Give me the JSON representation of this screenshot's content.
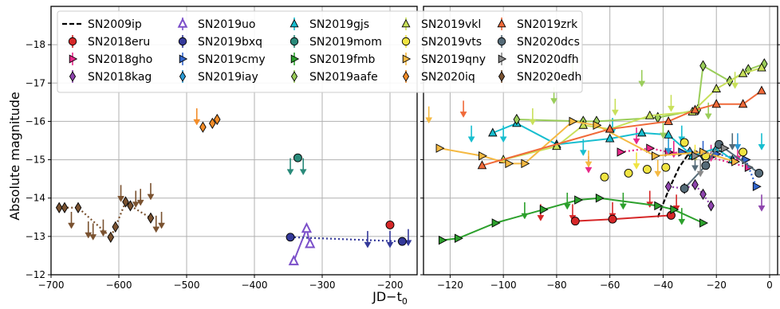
{
  "chart_data": {
    "type": "scatter",
    "ylabel": "Absolute magnitude",
    "xlabel": "JD−t",
    "xlabel_sub": "0",
    "y_inverted": true,
    "grid": true,
    "legend_placement": "top spanning both panels",
    "ylim": [
      -12,
      -19
    ],
    "yticks": [
      -12,
      -13,
      -14,
      -15,
      -16,
      -17,
      -18
    ],
    "ytick_labels": [
      "−12",
      "−13",
      "−14",
      "−15",
      "−16",
      "−17",
      "−18"
    ],
    "panels": [
      {
        "name": "left",
        "xlim": [
          -700,
          -160
        ],
        "xticks": [
          -700,
          -600,
          -500,
          -400,
          -300,
          -200
        ],
        "xtick_labels": [
          "−700",
          "−600",
          "−500",
          "−400",
          "−300",
          "−200"
        ]
      },
      {
        "name": "right",
        "xlim": [
          -130,
          3
        ],
        "xticks": [
          -120,
          -100,
          -80,
          -60,
          -40,
          -20,
          0
        ],
        "xtick_labels": [
          "−120",
          "−100",
          "−80",
          "−60",
          "−40",
          "−20",
          "0"
        ]
      }
    ],
    "series": [
      {
        "name": "SN2009ip",
        "color": "#000000",
        "marker": "dashed-line",
        "panel": "right",
        "points": [
          [
            -42,
            -13.5
          ],
          [
            -38,
            -14.2
          ],
          [
            -34,
            -14.8
          ],
          [
            -30,
            -15.2
          ],
          [
            -27,
            -15.2
          ]
        ],
        "upper_limits": []
      },
      {
        "name": "SN2018eru",
        "color": "#d62728",
        "marker": "circle",
        "line": "solid",
        "panels": {
          "left": {
            "points": [
              [
                -200,
                -13.3
              ]
            ],
            "upper_limits": []
          },
          "right": {
            "points": [
              [
                -73,
                -13.4
              ],
              [
                -59,
                -13.45
              ],
              [
                -37,
                -13.55
              ]
            ],
            "upper_limits": [
              [
                -86,
                -13.55
              ],
              [
                -74,
                -13.55
              ],
              [
                -59,
                -13.6
              ],
              [
                -45,
                -13.9
              ],
              [
                -35,
                -13.8
              ]
            ]
          }
        }
      },
      {
        "name": "SN2018gho",
        "color": "#e7298a",
        "marker": "triangle-right",
        "line": "dotted",
        "panels": {
          "right": {
            "points": [
              [
                -56,
                -15.2
              ],
              [
                -45,
                -15.3
              ],
              [
                -38,
                -15.2
              ],
              [
                -27,
                -15.15
              ],
              [
                -8,
                -14.8
              ]
            ],
            "upper_limits": [
              [
                -68,
                -14.8
              ],
              [
                -50,
                -15.55
              ],
              [
                -36,
                -15.2
              ],
              [
                -22,
                -15.1
              ],
              [
                -12,
                -15.1
              ]
            ]
          }
        }
      },
      {
        "name": "SN2018kag",
        "color": "#8e44ad",
        "marker": "diamond",
        "line": "dotted",
        "panels": {
          "right": {
            "points": [
              [
                -38,
                -14.3
              ],
              [
                -32,
                -14.25
              ],
              [
                -28,
                -14.35
              ],
              [
                -25,
                -14.1
              ],
              [
                -22,
                -13.8
              ]
            ],
            "upper_limits": [
              [
                -3,
                -13.8
              ]
            ]
          }
        }
      },
      {
        "name": "SN2019uo",
        "color": "#7b4fc9",
        "marker": "triangle-up-open",
        "line": "solid",
        "panels": {
          "left": {
            "points": [
              [
                -342,
                -12.35
              ],
              [
                -323,
                -13.2
              ],
              [
                -318,
                -12.8
              ]
            ],
            "upper_limits": []
          }
        }
      },
      {
        "name": "SN2019bxq",
        "color": "#34399a",
        "marker": "circle",
        "line": "dotted",
        "panels": {
          "left": {
            "points": [
              [
                -347,
                -12.98
              ],
              [
                -182,
                -12.87
              ]
            ],
            "upper_limits": [
              [
                -233,
                -12.85
              ],
              [
                -200,
                -12.85
              ],
              [
                -173,
                -12.9
              ]
            ]
          }
        }
      },
      {
        "name": "SN2019cmy",
        "color": "#3366cc",
        "marker": "triangle-right",
        "line": "dotted",
        "panels": {
          "right": {
            "points": [
              [
                -33,
                -15.2
              ],
              [
                -20,
                -15.15
              ],
              [
                -9,
                -15.0
              ],
              [
                -5,
                -14.3
              ]
            ],
            "upper_limits": [
              [
                -25,
                -15.2
              ]
            ]
          }
        }
      },
      {
        "name": "SN2019iay",
        "color": "#2b9ad4",
        "marker": "diamond",
        "line": "dotted",
        "panels": {
          "right": {
            "points": [
              [
                -30,
                -15.2
              ],
              [
                -25,
                -15.1
              ]
            ],
            "upper_limits": [
              [
                -38,
                -15.3
              ],
              [
                -12,
                -15.4
              ]
            ]
          }
        }
      },
      {
        "name": "SN2019gjs",
        "color": "#17becf",
        "marker": "triangle-up",
        "line": "solid",
        "panels": {
          "right": {
            "points": [
              [
                -104,
                -15.7
              ],
              [
                -95,
                -15.95
              ],
              [
                -80,
                -15.4
              ],
              [
                -60,
                -15.55
              ],
              [
                -48,
                -15.7
              ],
              [
                -38,
                -15.65
              ],
              [
                -29,
                -15.1
              ],
              [
                -20,
                -15.3
              ],
              [
                -14,
                -15.0
              ]
            ],
            "upper_limits": [
              [
                -112,
                -15.6
              ],
              [
                -100,
                -15.6
              ],
              [
                -70,
                -15.25
              ],
              [
                -59,
                -15.8
              ],
              [
                -33,
                -15.6
              ],
              [
                -3,
                -15.4
              ]
            ]
          }
        }
      },
      {
        "name": "SN2019mom",
        "color": "#2a8a7a",
        "marker": "circle",
        "line": "none",
        "panels": {
          "left": {
            "points": [
              [
                -336,
                -15.05
              ]
            ],
            "upper_limits": [
              [
                -347,
                -14.75
              ],
              [
                -328,
                -14.75
              ]
            ]
          }
        }
      },
      {
        "name": "SN2019fmb",
        "color": "#2ca02c",
        "marker": "triangle-right",
        "line": "solid",
        "panels": {
          "right": {
            "points": [
              [
                -123,
                -12.9
              ],
              [
                -117,
                -12.95
              ],
              [
                -103,
                -13.35
              ],
              [
                -85,
                -13.7
              ],
              [
                -72,
                -13.95
              ],
              [
                -64,
                -14.0
              ],
              [
                -42,
                -13.8
              ],
              [
                -36,
                -13.7
              ],
              [
                -25,
                -13.35
              ]
            ],
            "upper_limits": [
              [
                -92,
                -13.6
              ],
              [
                -76,
                -13.85
              ],
              [
                -55,
                -13.85
              ],
              [
                -33,
                -13.45
              ]
            ]
          }
        }
      },
      {
        "name": "SN2019aafe",
        "color": "#9acd5a",
        "marker": "diamond",
        "line": "solid",
        "panels": {
          "right": {
            "points": [
              [
                -95,
                -16.05
              ],
              [
                -70,
                -16.0
              ],
              [
                -65,
                -16.0
              ],
              [
                -42,
                -16.1
              ],
              [
                -27,
                -16.3
              ],
              [
                -25,
                -17.45
              ],
              [
                -15,
                -17.05
              ],
              [
                -8,
                -17.35
              ],
              [
                -2,
                -17.5
              ]
            ],
            "upper_limits": [
              [
                -81,
                -16.6
              ],
              [
                -74,
                -17.3
              ],
              [
                -48,
                -17.05
              ],
              [
                -40,
                -15.7
              ],
              [
                -23,
                -16.2
              ]
            ]
          }
        }
      },
      {
        "name": "SN2019vkl",
        "color": "#c8e05a",
        "marker": "triangle-up",
        "line": "solid",
        "panels": {
          "right": {
            "points": [
              [
                -100,
                -15.0
              ],
              [
                -80,
                -15.35
              ],
              [
                -70,
                -15.9
              ],
              [
                -60,
                -15.8
              ],
              [
                -45,
                -16.15
              ],
              [
                -29,
                -16.25
              ],
              [
                -20,
                -16.85
              ],
              [
                -10,
                -17.25
              ],
              [
                -3,
                -17.4
              ]
            ],
            "upper_limits": [
              [
                -89,
                -16.05
              ],
              [
                -58,
                -16.3
              ],
              [
                -37,
                -16.4
              ],
              [
                -13,
                -17.0
              ]
            ]
          }
        }
      },
      {
        "name": "SN2019vts",
        "color": "#f0e442",
        "marker": "circle",
        "line": "none",
        "panels": {
          "right": {
            "points": [
              [
                -62,
                -14.55
              ],
              [
                -53,
                -14.65
              ],
              [
                -46,
                -14.75
              ],
              [
                -39,
                -14.8
              ],
              [
                -32,
                -15.45
              ],
              [
                -24,
                -15.1
              ],
              [
                -10,
                -15.2
              ]
            ],
            "upper_limits": [
              [
                -50,
                -14.9
              ],
              [
                -28,
                -15.1
              ]
            ]
          }
        }
      },
      {
        "name": "SN2019qny",
        "color": "#f5b942",
        "marker": "triangle-right",
        "line": "solid",
        "panels": {
          "right": {
            "points": [
              [
                -124,
                -15.3
              ],
              [
                -108,
                -15.1
              ],
              [
                -98,
                -14.9
              ],
              [
                -92,
                -14.9
              ],
              [
                -74,
                -16.0
              ],
              [
                -65,
                -15.9
              ],
              [
                -43,
                -15.1
              ],
              [
                -25,
                -15.2
              ],
              [
                -13,
                -14.95
              ]
            ],
            "upper_limits": [
              [
                -128,
                -16.1
              ],
              [
                -68,
                -14.95
              ],
              [
                -42,
                -14.7
              ]
            ]
          }
        }
      },
      {
        "name": "SN2020iq",
        "color": "#f28c28",
        "marker": "diamond",
        "line": "none",
        "panels": {
          "left": {
            "points": [
              [
                -476,
                -15.85
              ],
              [
                -462,
                -15.95
              ],
              [
                -455,
                -16.05
              ]
            ],
            "upper_limits": [
              [
                -485,
                -16.05
              ]
            ]
          }
        }
      },
      {
        "name": "SN2019zrk",
        "color": "#f06a3a",
        "marker": "triangle-up",
        "line": "solid",
        "panels": {
          "right": {
            "points": [
              [
                -108,
                -14.85
              ],
              [
                -60,
                -15.8
              ],
              [
                -38,
                -16.0
              ],
              [
                -28,
                -16.3
              ],
              [
                -20,
                -16.45
              ],
              [
                -10,
                -16.45
              ],
              [
                -3,
                -16.8
              ]
            ],
            "upper_limits": [
              [
                -115,
                -16.25
              ]
            ]
          }
        }
      },
      {
        "name": "SN2020dcs",
        "color": "#556b78",
        "marker": "circle",
        "line": "solid",
        "panels": {
          "right": {
            "points": [
              [
                -32,
                -14.25
              ],
              [
                -24,
                -14.85
              ],
              [
                -19,
                -15.4
              ],
              [
                -4,
                -14.65
              ]
            ],
            "upper_limits": [
              [
                -28,
                -14.85
              ],
              [
                -14,
                -15.4
              ]
            ]
          }
        }
      },
      {
        "name": "SN2020dfh",
        "color": "#8a8a8a",
        "marker": "triangle-right",
        "line": "dotted",
        "panels": {
          "right": {
            "points": [
              [
                -28,
                -15.1
              ],
              [
                -17,
                -15.3
              ]
            ],
            "upper_limits": [
              [
                -26,
                -14.7
              ]
            ]
          }
        }
      },
      {
        "name": "SN2020edh",
        "color": "#7a5230",
        "marker": "diamond",
        "line": "dotted",
        "panels": {
          "left": {
            "points": [
              [
                -688,
                -13.75
              ],
              [
                -680,
                -13.75
              ],
              [
                -660,
                -13.75
              ],
              [
                -612,
                -12.98
              ],
              [
                -605,
                -13.25
              ],
              [
                -590,
                -13.9
              ],
              [
                -583,
                -13.8
              ],
              [
                -553,
                -13.48
              ]
            ],
            "upper_limits": [
              [
                -670,
                -13.35
              ],
              [
                -645,
                -13.1
              ],
              [
                -638,
                -13.05
              ],
              [
                -623,
                -13.15
              ],
              [
                -597,
                -14.05
              ],
              [
                -575,
                -13.9
              ],
              [
                -568,
                -13.95
              ],
              [
                -553,
                -14.1
              ],
              [
                -545,
                -13.25
              ],
              [
                -537,
                -13.35
              ]
            ]
          }
        }
      }
    ]
  }
}
